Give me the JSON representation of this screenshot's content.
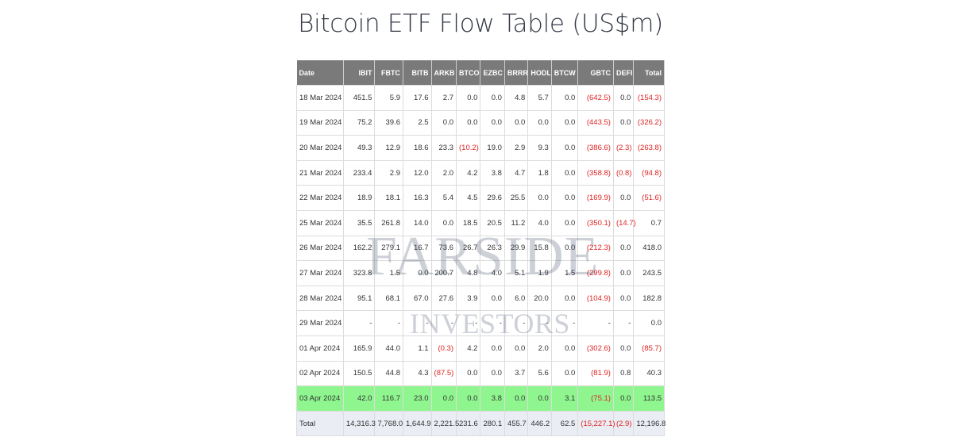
{
  "title": "Bitcoin ETF Flow Table (US$m)",
  "watermark": {
    "line1": "FARSIDE",
    "line2": "INVESTORS"
  },
  "colors": {
    "header_bg": "#7a7a7a",
    "negative": "#e02424",
    "highlight_row": "#8ff58f",
    "total_row_bg": "#eaeef4"
  },
  "table": {
    "headers": [
      "Date",
      "IBIT",
      "FBTC",
      "BITB",
      "ARKB",
      "BTCO",
      "EZBC",
      "BRRR",
      "HODL",
      "BTCW",
      "GBTC",
      "DEFI",
      "Total"
    ],
    "rows": [
      [
        "18 Mar 2024",
        "451.5",
        "5.9",
        "17.6",
        "2.7",
        "0.0",
        "0.0",
        "4.8",
        "5.7",
        "0.0",
        "(642.5)",
        "0.0",
        "(154.3)"
      ],
      [
        "19 Mar 2024",
        "75.2",
        "39.6",
        "2.5",
        "0.0",
        "0.0",
        "0.0",
        "0.0",
        "0.0",
        "0.0",
        "(443.5)",
        "0.0",
        "(326.2)"
      ],
      [
        "20 Mar 2024",
        "49.3",
        "12.9",
        "18.6",
        "23.3",
        "(10.2)",
        "19.0",
        "2.9",
        "9.3",
        "0.0",
        "(386.6)",
        "(2.3)",
        "(263.8)"
      ],
      [
        "21 Mar 2024",
        "233.4",
        "2.9",
        "12.0",
        "2.0",
        "4.2",
        "3.8",
        "4.7",
        "1.8",
        "0.0",
        "(358.8)",
        "(0.8)",
        "(94.8)"
      ],
      [
        "22 Mar 2024",
        "18.9",
        "18.1",
        "16.3",
        "5.4",
        "4.5",
        "29.6",
        "25.5",
        "0.0",
        "0.0",
        "(169.9)",
        "0.0",
        "(51.6)"
      ],
      [
        "25 Mar 2024",
        "35.5",
        "261.8",
        "14.0",
        "0.0",
        "18.5",
        "20.5",
        "11.2",
        "4.0",
        "0.0",
        "(350.1)",
        "(14.7)",
        "0.7"
      ],
      [
        "26 Mar 2024",
        "162.2",
        "279.1",
        "16.7",
        "73.6",
        "26.7",
        "26.3",
        "29.9",
        "15.8",
        "0.0",
        "(212.3)",
        "0.0",
        "418.0"
      ],
      [
        "27 Mar 2024",
        "323.8",
        "1.5",
        "0.0",
        "200.7",
        "4.8",
        "4.0",
        "5.1",
        "1.9",
        "1.5",
        "(299.8)",
        "0.0",
        "243.5"
      ],
      [
        "28 Mar 2024",
        "95.1",
        "68.1",
        "67.0",
        "27.6",
        "3.9",
        "0.0",
        "6.0",
        "20.0",
        "0.0",
        "(104.9)",
        "0.0",
        "182.8"
      ],
      [
        "29 Mar 2024",
        "-",
        "-",
        "-",
        "-",
        "-",
        "-",
        "-",
        "-",
        "-",
        "-",
        "-",
        "0.0"
      ],
      [
        "01 Apr 2024",
        "165.9",
        "44.0",
        "1.1",
        "(0.3)",
        "4.2",
        "0.0",
        "0.0",
        "2.0",
        "0.0",
        "(302.6)",
        "0.0",
        "(85.7)"
      ],
      [
        "02 Apr 2024",
        "150.5",
        "44.8",
        "4.3",
        "(87.5)",
        "0.0",
        "0.0",
        "3.7",
        "5.6",
        "0.0",
        "(81.9)",
        "0.8",
        "40.3"
      ],
      [
        "03 Apr 2024",
        "42.0",
        "116.7",
        "23.0",
        "0.0",
        "0.0",
        "3.8",
        "0.0",
        "0.0",
        "3.1",
        "(75.1)",
        "0.0",
        "113.5"
      ],
      [
        "Total",
        "14,316.3",
        "7,768.0",
        "1,644.9",
        "2,221.5",
        "231.6",
        "280.1",
        "455.7",
        "446.2",
        "62.5",
        "(15,227.1)",
        "(2.9)",
        "12,196.8"
      ]
    ],
    "highlight_row_index": 12,
    "total_row_index": 13
  }
}
